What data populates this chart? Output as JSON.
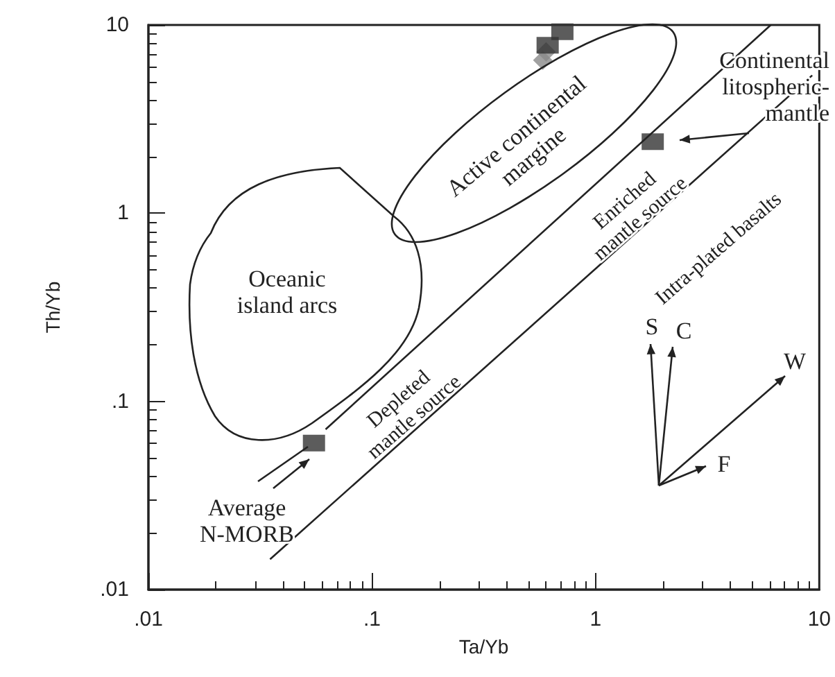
{
  "chart_data": {
    "type": "scatter",
    "xlabel": "Ta/Yb",
    "ylabel": "Th/Yb",
    "log": "xy",
    "grid": false,
    "xlim": [
      0.01,
      10
    ],
    "ylim": [
      0.01,
      10
    ],
    "xticks": [
      {
        "value": 0.01,
        "label": ".01"
      },
      {
        "value": 0.1,
        "label": ".1"
      },
      1,
      10
    ],
    "yticks": [
      {
        "value": 0.01,
        "label": ".01"
      },
      {
        "value": 0.1,
        "label": ".1"
      },
      1,
      10
    ],
    "series": [
      {
        "marker": "diamond",
        "color": "#8a8a8a",
        "x": [
          0.58,
          0.6
        ],
        "values": [
          6.5,
          7.2
        ]
      },
      {
        "marker": "square",
        "color": "#333333",
        "x": [
          0.61,
          0.71
        ],
        "values": [
          7.8,
          9.2
        ]
      },
      {
        "marker": "square",
        "color": "#333333",
        "x": [
          1.8,
          0.055
        ],
        "values": [
          2.4,
          0.06
        ]
      },
      {
        "type": "line",
        "marker": "none",
        "color": "#222222",
        "x": [
          0.062,
          6.07
        ],
        "values": [
          0.071,
          10
        ]
      },
      {
        "type": "line",
        "marker": "none",
        "color": "#222222",
        "x": [
          0.035,
          9.3
        ],
        "values": [
          0.0145,
          5.4
        ]
      }
    ],
    "annotations": [
      "Oceanic\nisland arcs",
      "Active continental\nmargine",
      "Continental\nlitospheric-\nmantle",
      "Enriched\nmantle source",
      "Intra-plated basalts",
      "Depleted\nmantle source",
      "Average\nN-MORB",
      "S",
      "C",
      "W",
      "F"
    ]
  }
}
